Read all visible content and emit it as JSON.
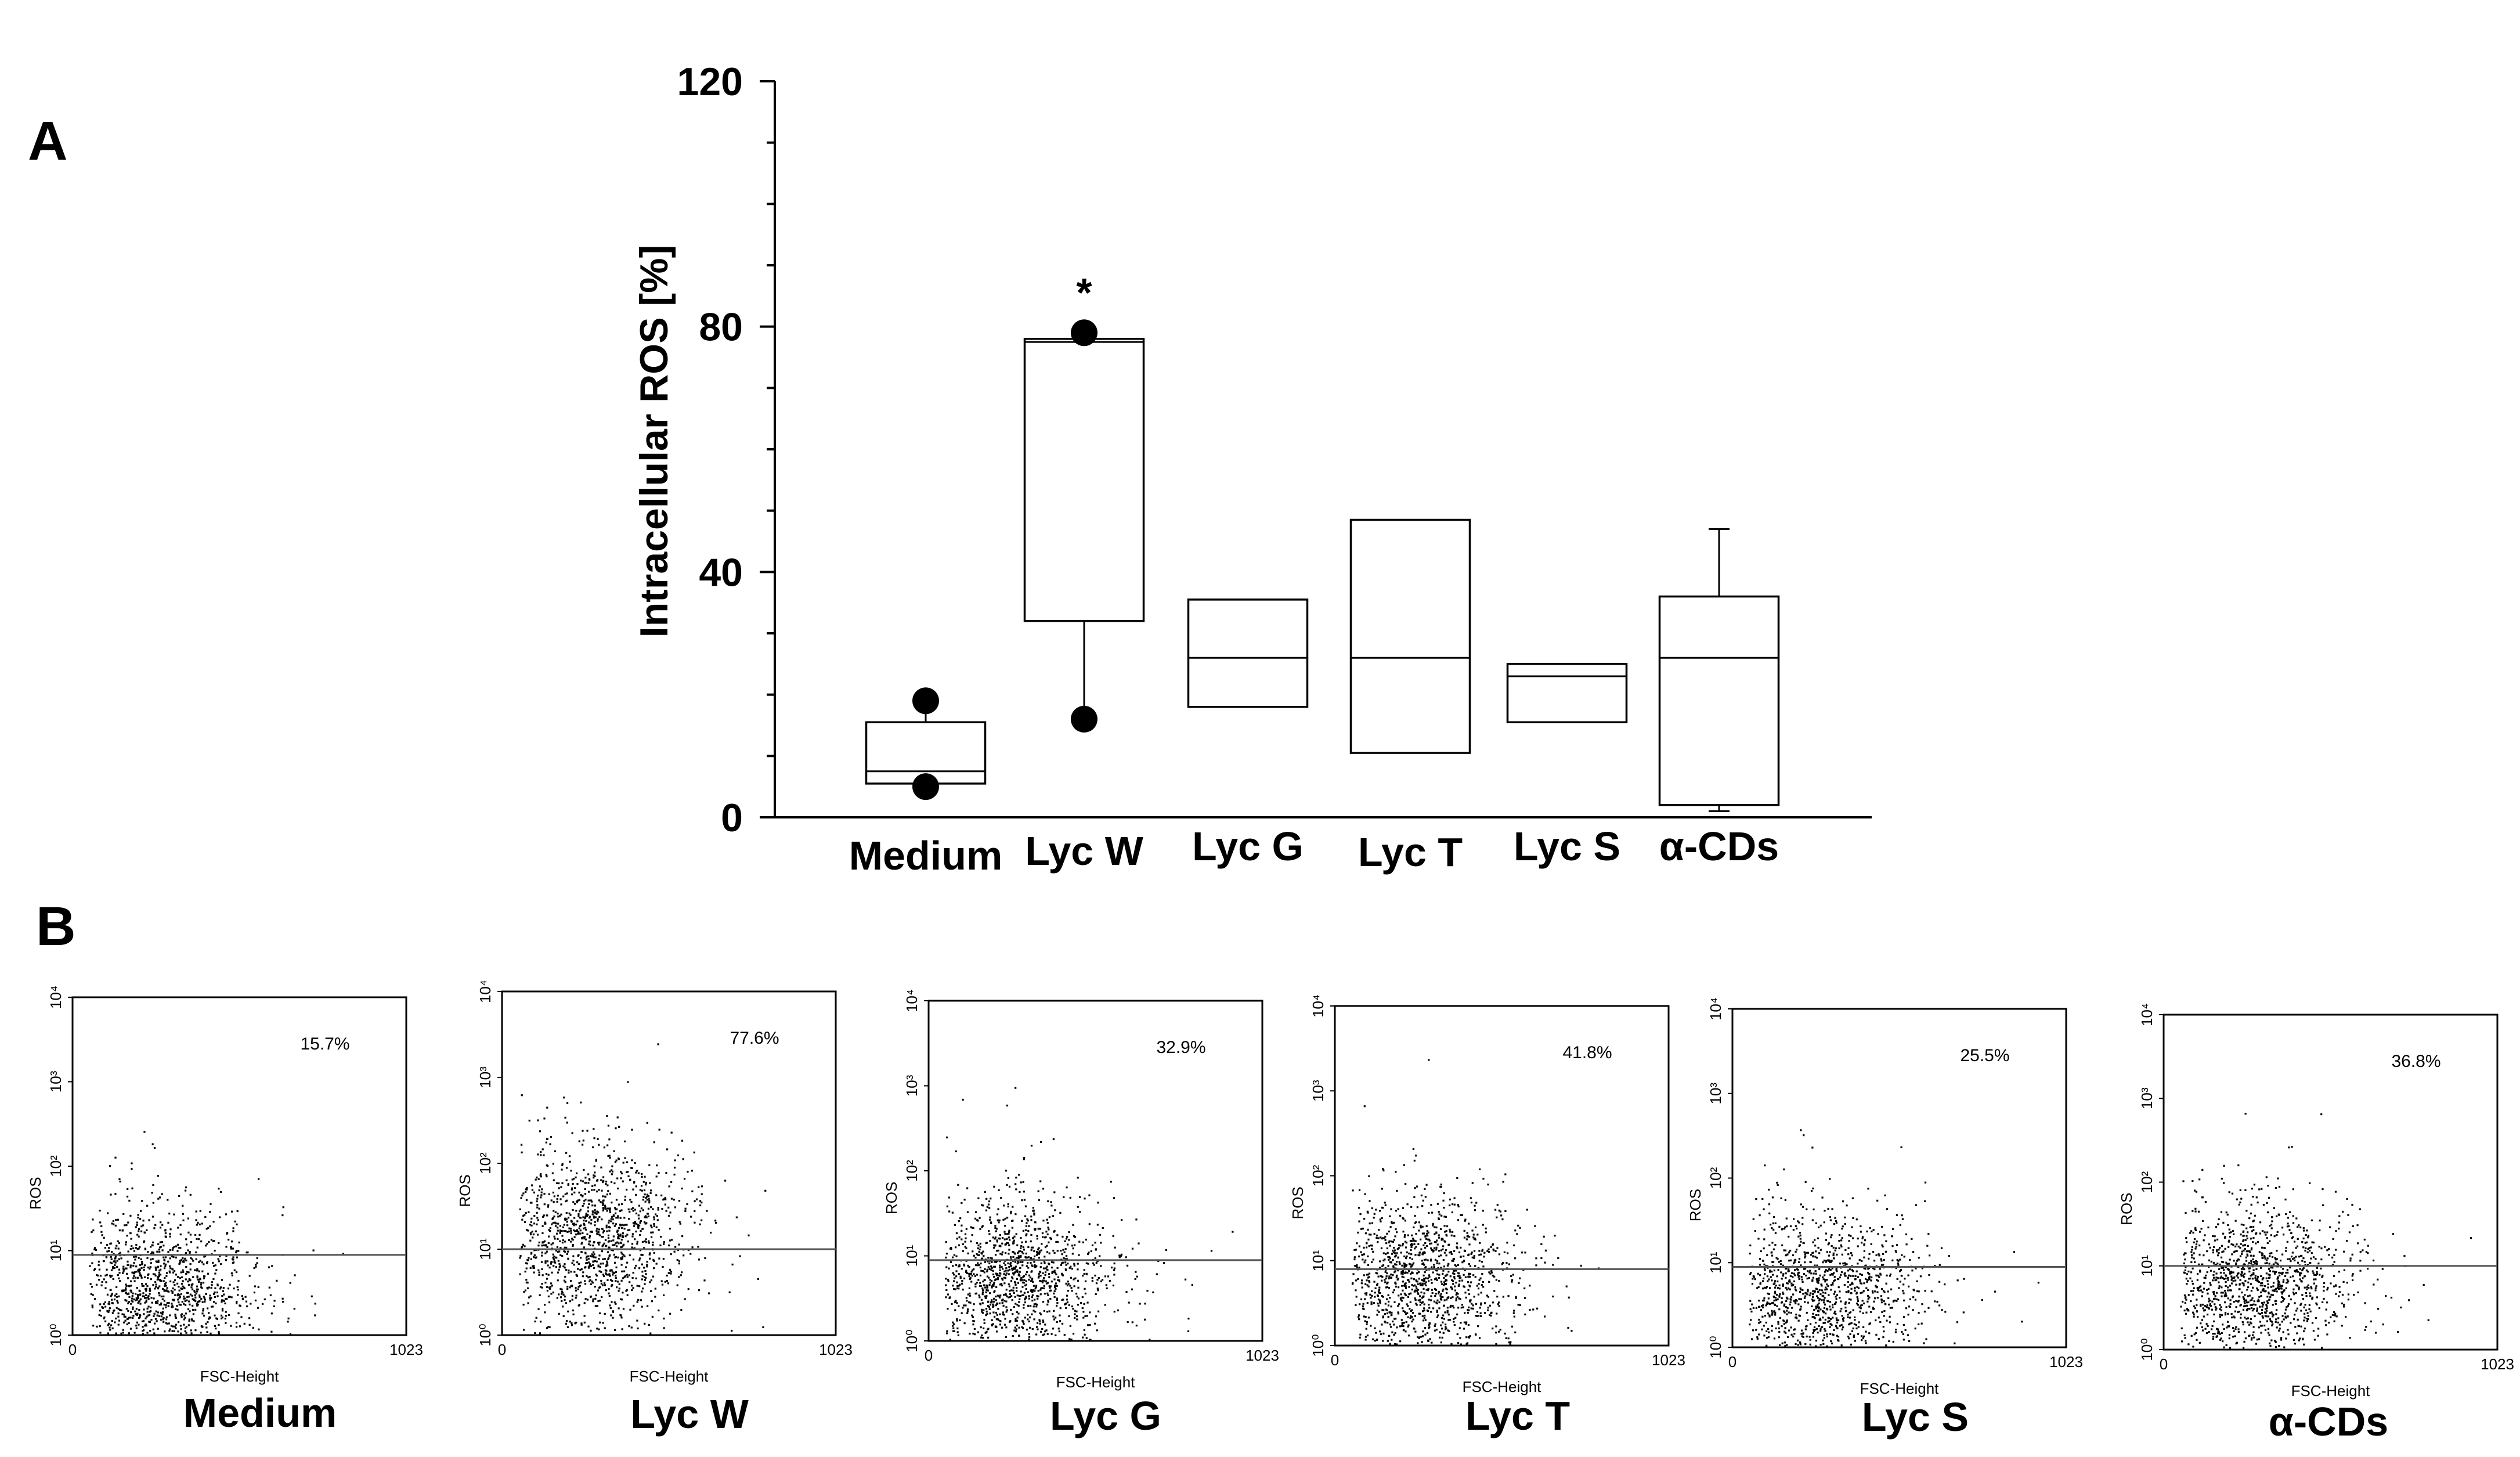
{
  "panels": {
    "a_letter": "A",
    "b_letter": "B"
  },
  "chart_data": [
    {
      "type": "box",
      "panel": "A",
      "title": "",
      "xlabel": "",
      "ylabel": "Intracellular  ROS [%]",
      "ylim": [
        0,
        120
      ],
      "yticks": [
        0,
        40,
        80,
        120
      ],
      "categories": [
        "Medium",
        "Lyc W",
        "Lyc G",
        "Lyc T",
        "Lyc S",
        "α-CDs"
      ],
      "boxes": [
        {
          "q1": 5.5,
          "median": 7.5,
          "q3": 15.5,
          "whisker_low": 5.5,
          "whisker_high": 19,
          "outliers": [
            19,
            5
          ],
          "annotation": ""
        },
        {
          "q1": 32,
          "median": 77.5,
          "q3": 78,
          "whisker_low": 16.5,
          "whisker_high": 78,
          "outliers": [
            79,
            16
          ],
          "annotation": "*"
        },
        {
          "q1": 18,
          "median": 26,
          "q3": 35.5,
          "whisker_low": 18,
          "whisker_high": 35.5,
          "outliers": [],
          "annotation": ""
        },
        {
          "q1": 10.5,
          "median": 26,
          "q3": 48.5,
          "whisker_low": 10.5,
          "whisker_high": 48.5,
          "outliers": [],
          "annotation": ""
        },
        {
          "q1": 15.5,
          "median": 23,
          "q3": 25,
          "whisker_low": 15.5,
          "whisker_high": 25,
          "outliers": [],
          "annotation": ""
        },
        {
          "q1": 2,
          "median": 26,
          "q3": 36,
          "whisker_low": 1,
          "whisker_high": 47,
          "outliers": [],
          "annotation": ""
        }
      ]
    },
    {
      "type": "scatter",
      "panel": "B",
      "description_kind": "flow-cytometry-dot-plots",
      "xlabel": "FSC-Height",
      "ylabel": "ROS",
      "x_range": [
        0,
        1023
      ],
      "x_tick_labels": [
        "0",
        "1023"
      ],
      "y_tick_labels": [
        "10⁰",
        "10¹",
        "10²",
        "10³",
        "10⁴"
      ],
      "plots": [
        {
          "name": "Medium",
          "percent": "15.7%",
          "gate_decade": 0.95,
          "center_x": 250,
          "center_decade": 0.55,
          "spread_x": 150,
          "spread_decade": 0.45
        },
        {
          "name": "Lyc W",
          "percent": "77.6%",
          "gate_decade": 1.0,
          "center_x": 270,
          "center_decade": 1.15,
          "spread_x": 140,
          "spread_decade": 0.5
        },
        {
          "name": "Lyc G",
          "percent": "32.9%",
          "gate_decade": 0.95,
          "center_x": 250,
          "center_decade": 0.75,
          "spread_x": 150,
          "spread_decade": 0.45
        },
        {
          "name": "Lyc T",
          "percent": "41.8%",
          "gate_decade": 0.9,
          "center_x": 250,
          "center_decade": 0.8,
          "spread_x": 140,
          "spread_decade": 0.45
        },
        {
          "name": "Lyc S",
          "percent": "25.5%",
          "gate_decade": 0.95,
          "center_x": 250,
          "center_decade": 0.65,
          "spread_x": 160,
          "spread_decade": 0.45
        },
        {
          "name": "α-CDs",
          "percent": "36.8%",
          "gate_decade": 1.0,
          "center_x": 260,
          "center_decade": 0.8,
          "spread_x": 150,
          "spread_decade": 0.45
        }
      ]
    }
  ]
}
